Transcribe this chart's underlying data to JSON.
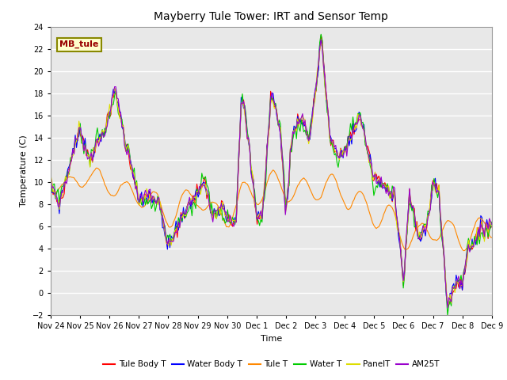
{
  "title": "Mayberry Tule Tower: IRT and Sensor Temp",
  "xlabel": "Time",
  "ylabel": "Temperature (C)",
  "ylim": [
    -2,
    24
  ],
  "yticks": [
    -2,
    0,
    2,
    4,
    6,
    8,
    10,
    12,
    14,
    16,
    18,
    20,
    22,
    24
  ],
  "x_tick_labels": [
    "Nov 24",
    "Nov 25",
    "Nov 26",
    "Nov 27",
    "Nov 28",
    "Nov 29",
    "Nov 30",
    "Dec 1",
    "Dec 2",
    "Dec 3",
    "Dec 4",
    "Dec 5",
    "Dec 6",
    "Dec 7",
    "Dec 8",
    "Dec 9"
  ],
  "background_color": "#e8e8e8",
  "grid_color": "#ffffff",
  "legend_label": "MB_tule",
  "series_colors": {
    "Tule Body T": "#ff0000",
    "Water Body T": "#0000ff",
    "Tule T": "#ff8800",
    "Water T": "#00cc00",
    "PanelT": "#dddd00",
    "AM25T": "#9900cc"
  }
}
